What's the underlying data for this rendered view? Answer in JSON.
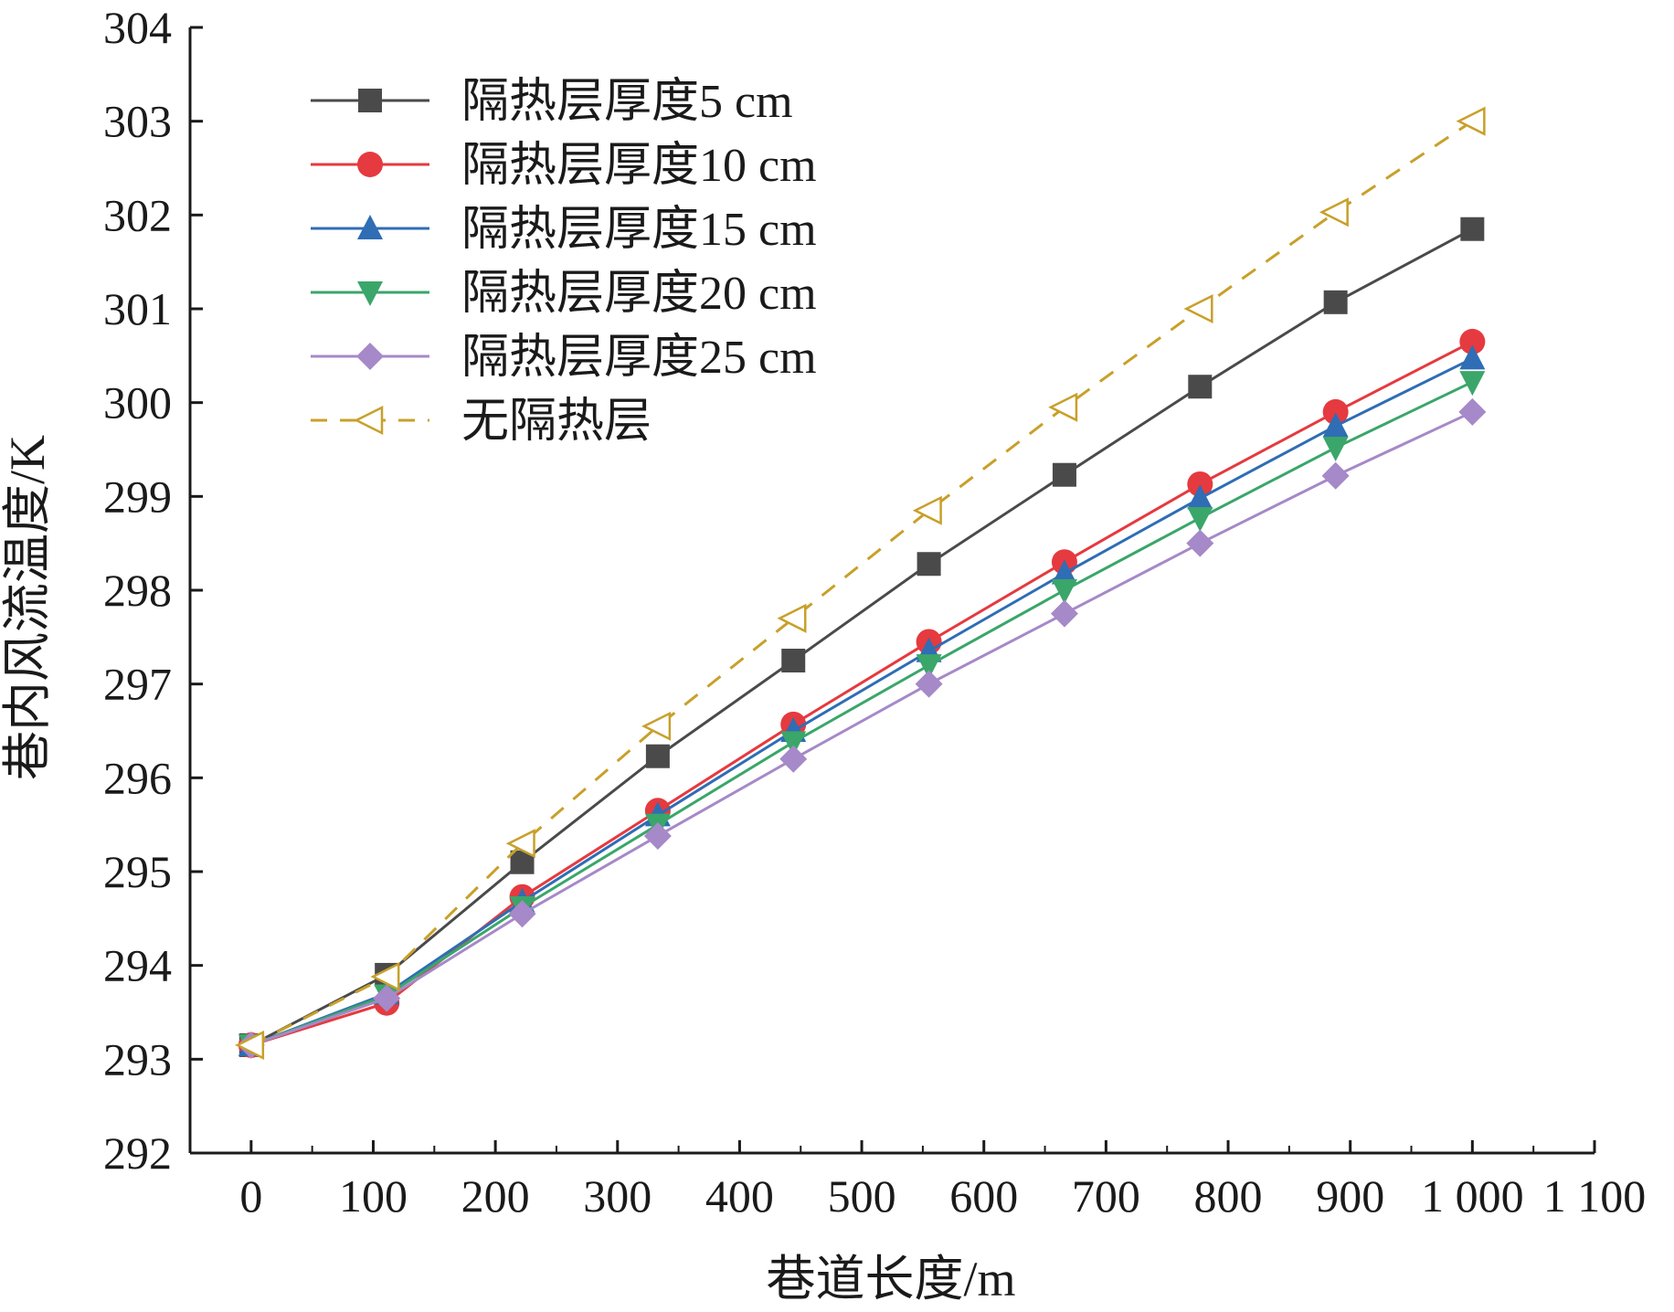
{
  "chart_data": {
    "type": "line",
    "xlabel": "巷道长度/m",
    "ylabel": "巷内风流温度/K",
    "xlim": [
      -50,
      1100
    ],
    "ylim": [
      292,
      304
    ],
    "xticks": [
      0,
      100,
      200,
      300,
      400,
      500,
      600,
      700,
      800,
      900,
      1000,
      1100
    ],
    "xtick_labels": [
      "0",
      "100",
      "200",
      "300",
      "400",
      "500",
      "600",
      "700",
      "800",
      "900",
      "1 000",
      "1 100"
    ],
    "yticks": [
      292,
      293,
      294,
      295,
      296,
      297,
      298,
      299,
      300,
      301,
      302,
      303,
      304
    ],
    "ytick_labels": [
      "292",
      "293",
      "294",
      "295",
      "296",
      "297",
      "298",
      "299",
      "300",
      "301",
      "302",
      "303",
      "304"
    ],
    "x": [
      0,
      111,
      222,
      333,
      444,
      555,
      666,
      777,
      888,
      1000
    ],
    "grid": false,
    "legend_position": "top-left",
    "series": [
      {
        "name": "隔热层厚度5 cm",
        "color": "#4a4a4a",
        "marker": "square",
        "dashed": false,
        "values": [
          293.15,
          293.9,
          295.1,
          296.23,
          297.25,
          298.28,
          299.23,
          300.17,
          301.07,
          301.85
        ]
      },
      {
        "name": "隔热层厚度10 cm",
        "color": "#e53a3f",
        "marker": "circle",
        "dashed": false,
        "values": [
          293.15,
          293.6,
          294.73,
          295.65,
          296.57,
          297.45,
          298.3,
          299.13,
          299.9,
          300.65
        ]
      },
      {
        "name": "隔热层厚度15 cm",
        "color": "#2f6db5",
        "marker": "triangle-up",
        "dashed": false,
        "values": [
          293.15,
          293.7,
          294.68,
          295.6,
          296.5,
          297.35,
          298.18,
          298.98,
          299.75,
          300.47
        ]
      },
      {
        "name": "隔热层厚度20 cm",
        "color": "#3aa66a",
        "marker": "triangle-down",
        "dashed": false,
        "values": [
          293.15,
          293.68,
          294.62,
          295.5,
          296.38,
          297.2,
          298.0,
          298.77,
          299.52,
          300.22
        ]
      },
      {
        "name": "隔热层厚度25 cm",
        "color": "#a689c8",
        "marker": "diamond",
        "dashed": false,
        "values": [
          293.15,
          293.65,
          294.55,
          295.38,
          296.2,
          297.0,
          297.75,
          298.5,
          299.22,
          299.9
        ]
      },
      {
        "name": "无隔热层",
        "color": "#c8a02a",
        "marker": "triangle-left-open",
        "dashed": true,
        "values": [
          293.15,
          293.88,
          295.3,
          296.55,
          297.7,
          298.85,
          299.95,
          301.0,
          302.03,
          303.0
        ]
      }
    ]
  }
}
